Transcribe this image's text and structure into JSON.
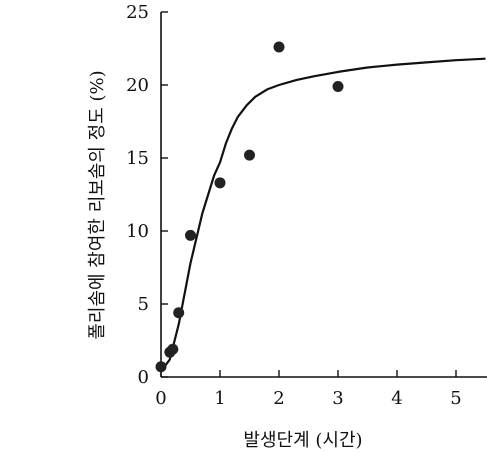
{
  "chart_data": {
    "type": "scatter",
    "title": "",
    "xlabel": "발생단계 (시간)",
    "ylabel": "폴리솜에 참여한 리보솜의 정도 (%)",
    "xlim": [
      0,
      5.5
    ],
    "ylim": [
      0,
      25
    ],
    "x_ticks": [
      0,
      1,
      2,
      3,
      4,
      5
    ],
    "y_ticks": [
      0,
      5,
      10,
      15,
      20,
      25
    ],
    "grid": false,
    "colors": {
      "points": "#222222",
      "curve": "#111111",
      "axis": "#111111"
    },
    "series": [
      {
        "kind": "points",
        "x": [
          0.0,
          0.15,
          0.2,
          0.3,
          0.5,
          1.0,
          1.5,
          2.0,
          3.0
        ],
        "y": [
          0.7,
          1.7,
          1.9,
          4.4,
          9.7,
          13.3,
          15.2,
          22.6,
          19.9
        ]
      },
      {
        "kind": "fit-curve",
        "x": [
          0.0,
          0.15,
          0.3,
          0.5,
          0.7,
          0.9,
          1.0,
          1.1,
          1.2,
          1.3,
          1.45,
          1.6,
          1.8,
          2.0,
          2.3,
          2.6,
          3.0,
          3.5,
          4.0,
          4.5,
          5.0,
          5.5
        ],
        "y": [
          0.4,
          1.2,
          3.6,
          7.8,
          11.2,
          13.8,
          14.7,
          16.0,
          17.0,
          17.8,
          18.6,
          19.2,
          19.7,
          20.0,
          20.35,
          20.6,
          20.9,
          21.2,
          21.4,
          21.55,
          21.7,
          21.8
        ]
      }
    ]
  }
}
